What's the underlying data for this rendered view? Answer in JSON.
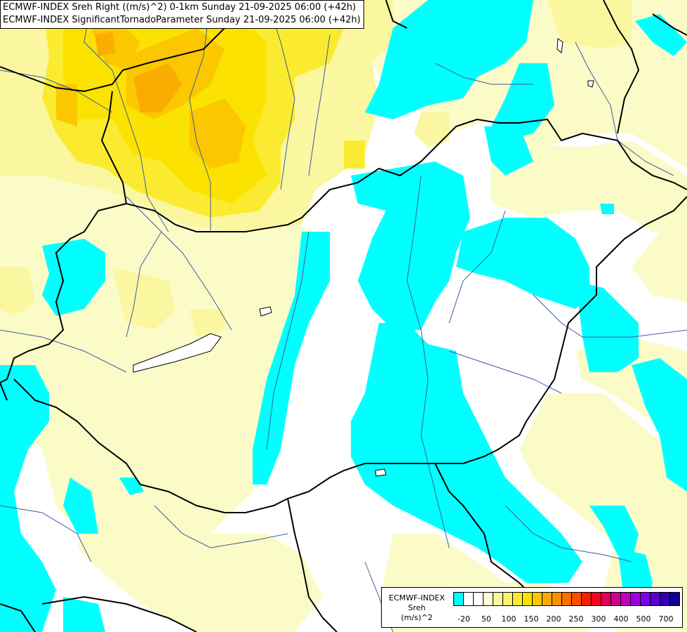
{
  "titles": {
    "line1": "ECMWF-INDEX Sreh Right ((m/s)^2) 0-1km Sunday 21-09-2025 06:00 (+42h)",
    "line2": "ECMWF-INDEX SignificantTornadoParameter Sunday 21-09-2025 06:00 (+42h)"
  },
  "legend": {
    "line1": "ECMWF-INDEX",
    "line2": "Sreh",
    "line3": "(m/s)^2",
    "swatch_colors": [
      "#00ffff",
      "#ffffff",
      "#ffffff",
      "#fdfbd0",
      "#fbf7a0",
      "#fbf370",
      "#fbeb30",
      "#fbe200",
      "#fbc700",
      "#fbac00",
      "#f99000",
      "#f87000",
      "#f65000",
      "#f62000",
      "#f40020",
      "#e0005a",
      "#d00090",
      "#c000c0",
      "#a000e0",
      "#7b00e8",
      "#5a00d0",
      "#3000b0",
      "#100090"
    ],
    "tick_labels": [
      "-20",
      "50",
      "100",
      "150",
      "200",
      "250",
      "300",
      "400",
      "500",
      "700"
    ]
  },
  "colors": {
    "cyan": "#00ffff",
    "pale_yellow": "#fbfbc8",
    "yellow_light": "#fbf7a0",
    "yellow": "#fbeb30",
    "yellow_deep": "#fbe200",
    "gold": "#fbc700",
    "orange": "#fbac00",
    "border_line": "#000000",
    "river_line": "#3c5aa0"
  }
}
